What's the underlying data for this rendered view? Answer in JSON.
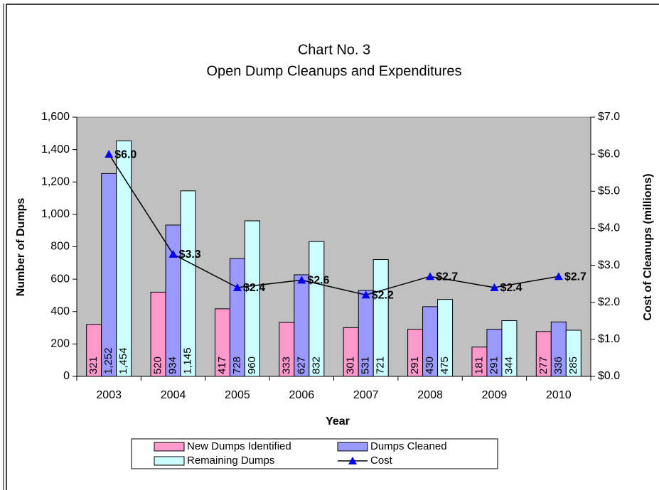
{
  "chart_data": {
    "type": "bar",
    "title": "Chart No. 3",
    "subtitle": "Open Dump Cleanups and Expenditures",
    "x_label": "Year",
    "y_label": "Number of Dumps",
    "y2_label": "Cost of Cleanups (millions)",
    "categories": [
      "2003",
      "2004",
      "2005",
      "2006",
      "2007",
      "2008",
      "2009",
      "2010"
    ],
    "series": [
      {
        "name": "New Dumps Identified",
        "type": "bar",
        "color": "#ff99cc",
        "values": [
          321,
          520,
          417,
          333,
          301,
          291,
          181,
          277
        ]
      },
      {
        "name": "Dumps Cleaned",
        "type": "bar",
        "color": "#9999ff",
        "values": [
          1252,
          934,
          728,
          627,
          531,
          430,
          291,
          336
        ],
        "value_labels": [
          "1,252",
          "934",
          "728",
          "627",
          "531",
          "430",
          "291",
          "336"
        ]
      },
      {
        "name": "Remaining Dumps",
        "type": "bar",
        "color": "#ccffff",
        "values": [
          1454,
          1145,
          960,
          832,
          721,
          475,
          344,
          285
        ],
        "value_labels": [
          "1,454",
          "1,145",
          "960",
          "832",
          "721",
          "475",
          "344",
          "285"
        ]
      },
      {
        "name": "Cost",
        "type": "line",
        "axis": "y2",
        "color": "#000000",
        "marker_color": "#0000ff",
        "values": [
          6.0,
          3.3,
          2.4,
          2.6,
          2.2,
          2.7,
          2.4,
          2.7
        ],
        "value_labels": [
          "$6.0",
          "$3.3",
          "$2.4",
          "$2.6",
          "$2.2",
          "$2.7",
          "$2.4",
          "$2.7"
        ]
      }
    ],
    "ylim": [
      0,
      1600
    ],
    "yticks": [
      0,
      200,
      400,
      600,
      800,
      {
        "value": 1000,
        "label": "1,000"
      },
      {
        "value": 1200,
        "label": "1,200"
      },
      {
        "value": 1400,
        "label": "1,400"
      },
      {
        "value": 1600,
        "label": "1,600"
      }
    ],
    "y2lim": [
      0,
      7
    ],
    "y2ticks": [
      {
        "value": 0,
        "label": "$0.0"
      },
      {
        "value": 1,
        "label": "$1.0"
      },
      {
        "value": 2,
        "label": "$2.0"
      },
      {
        "value": 3,
        "label": "$3.0"
      },
      {
        "value": 4,
        "label": "$4.0"
      },
      {
        "value": 5,
        "label": "$5.0"
      },
      {
        "value": 6,
        "label": "$6.0"
      },
      {
        "value": 7,
        "label": "$7.0"
      }
    ],
    "plot_background": "#c0c0c0"
  }
}
